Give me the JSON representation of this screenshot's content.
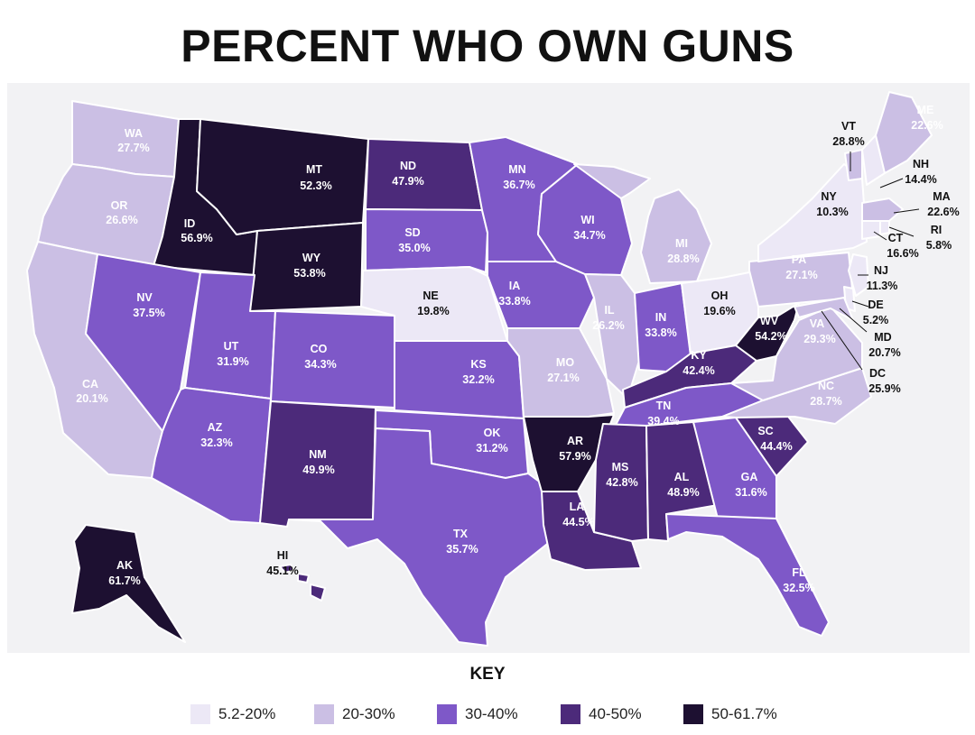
{
  "title": "PERCENT WHO OWN GUNS",
  "key_title": "KEY",
  "colors": {
    "c1": "#ece8f6",
    "c2": "#cbbfe4",
    "c3": "#7e58c8",
    "c4": "#4c2a7a",
    "c5": "#1d1031",
    "bg": "#f2f2f4"
  },
  "legend": [
    {
      "label": "5.2-20%",
      "color": "#ece8f6"
    },
    {
      "label": "20-30%",
      "color": "#cbbfe4"
    },
    {
      "label": "30-40%",
      "color": "#7e58c8"
    },
    {
      "label": "40-50%",
      "color": "#4c2a7a"
    },
    {
      "label": "50-61.7%",
      "color": "#1d1031"
    }
  ],
  "states": [
    {
      "abbr": "WA",
      "value": "27.7%",
      "bin": 2
    },
    {
      "abbr": "OR",
      "value": "26.6%",
      "bin": 2
    },
    {
      "abbr": "CA",
      "value": "20.1%",
      "bin": 2
    },
    {
      "abbr": "ID",
      "value": "56.9%",
      "bin": 5
    },
    {
      "abbr": "NV",
      "value": "37.5%",
      "bin": 3
    },
    {
      "abbr": "MT",
      "value": "52.3%",
      "bin": 5
    },
    {
      "abbr": "WY",
      "value": "53.8%",
      "bin": 5
    },
    {
      "abbr": "UT",
      "value": "31.9%",
      "bin": 3
    },
    {
      "abbr": "AZ",
      "value": "32.3%",
      "bin": 3
    },
    {
      "abbr": "CO",
      "value": "34.3%",
      "bin": 3
    },
    {
      "abbr": "NM",
      "value": "49.9%",
      "bin": 4
    },
    {
      "abbr": "ND",
      "value": "47.9%",
      "bin": 4
    },
    {
      "abbr": "SD",
      "value": "35.0%",
      "bin": 3
    },
    {
      "abbr": "NE",
      "value": "19.8%",
      "bin": 1
    },
    {
      "abbr": "KS",
      "value": "32.2%",
      "bin": 3
    },
    {
      "abbr": "OK",
      "value": "31.2%",
      "bin": 3
    },
    {
      "abbr": "TX",
      "value": "35.7%",
      "bin": 3
    },
    {
      "abbr": "MN",
      "value": "36.7%",
      "bin": 3
    },
    {
      "abbr": "IA",
      "value": "33.8%",
      "bin": 3
    },
    {
      "abbr": "MO",
      "value": "27.1%",
      "bin": 2
    },
    {
      "abbr": "AR",
      "value": "57.9%",
      "bin": 5
    },
    {
      "abbr": "LA",
      "value": "44.5%",
      "bin": 4
    },
    {
      "abbr": "WI",
      "value": "34.7%",
      "bin": 3
    },
    {
      "abbr": "IL",
      "value": "26.2%",
      "bin": 2
    },
    {
      "abbr": "MI",
      "value": "28.8%",
      "bin": 2
    },
    {
      "abbr": "IN",
      "value": "33.8%",
      "bin": 3
    },
    {
      "abbr": "OH",
      "value": "19.6%",
      "bin": 1
    },
    {
      "abbr": "KY",
      "value": "42.4%",
      "bin": 4
    },
    {
      "abbr": "TN",
      "value": "39.4%",
      "bin": 3
    },
    {
      "abbr": "MS",
      "value": "42.8%",
      "bin": 4
    },
    {
      "abbr": "AL",
      "value": "48.9%",
      "bin": 4
    },
    {
      "abbr": "GA",
      "value": "31.6%",
      "bin": 3
    },
    {
      "abbr": "FL",
      "value": "32.5%",
      "bin": 3
    },
    {
      "abbr": "SC",
      "value": "44.4%",
      "bin": 4
    },
    {
      "abbr": "NC",
      "value": "28.7%",
      "bin": 2
    },
    {
      "abbr": "VA",
      "value": "29.3%",
      "bin": 2
    },
    {
      "abbr": "WV",
      "value": "54.2%",
      "bin": 5
    },
    {
      "abbr": "PA",
      "value": "27.1%",
      "bin": 2
    },
    {
      "abbr": "NY",
      "value": "10.3%",
      "bin": 1
    },
    {
      "abbr": "VT",
      "value": "28.8%",
      "bin": 2
    },
    {
      "abbr": "NH",
      "value": "14.4%",
      "bin": 1
    },
    {
      "abbr": "ME",
      "value": "22.6%",
      "bin": 2
    },
    {
      "abbr": "MA",
      "value": "22.6%",
      "bin": 2
    },
    {
      "abbr": "RI",
      "value": "5.8%",
      "bin": 1
    },
    {
      "abbr": "CT",
      "value": "16.6%",
      "bin": 1
    },
    {
      "abbr": "NJ",
      "value": "11.3%",
      "bin": 1
    },
    {
      "abbr": "DE",
      "value": "5.2%",
      "bin": 1
    },
    {
      "abbr": "MD",
      "value": "20.7%",
      "bin": 2
    },
    {
      "abbr": "DC",
      "value": "25.9%",
      "bin": 2
    },
    {
      "abbr": "AK",
      "value": "61.7%",
      "bin": 5
    },
    {
      "abbr": "HI",
      "value": "45.1%",
      "bin": 4
    }
  ]
}
